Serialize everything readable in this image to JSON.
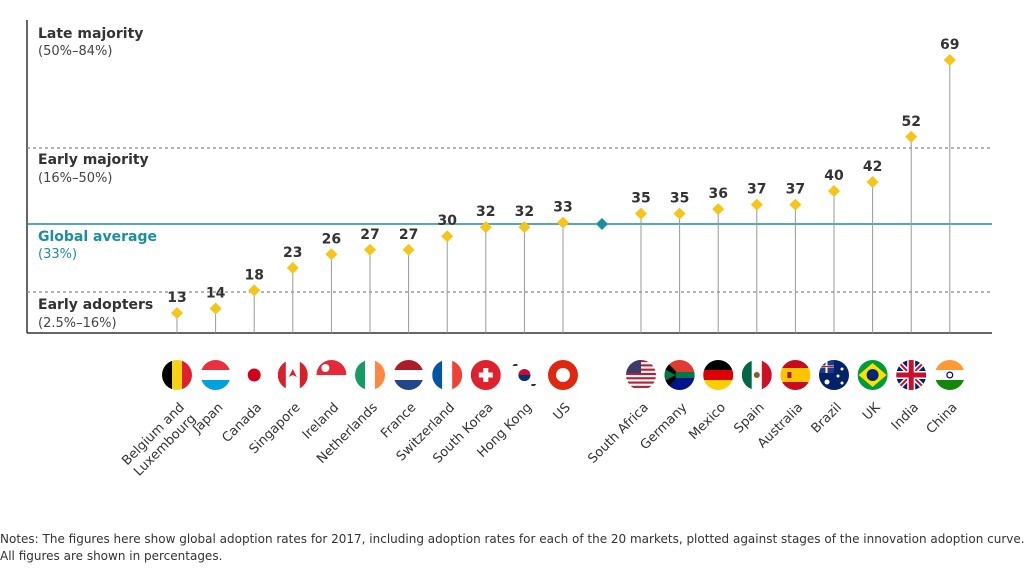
{
  "chart_data": {
    "type": "scatter",
    "title": "",
    "xlabel": "",
    "ylabel": "",
    "ylim": [
      10,
      72
    ],
    "categories": [
      "Belgium and Luxembourg",
      "Japan",
      "Canada",
      "Singapore",
      "Ireland",
      "Netherlands",
      "France",
      "Switzerland",
      "South Korea",
      "Hong Kong",
      "US",
      "South Africa",
      "Germany",
      "Mexico",
      "Spain",
      "Australia",
      "Brazil",
      "UK",
      "India",
      "China"
    ],
    "category_lines": [
      [
        "Belgium and",
        "Luxembourg"
      ],
      [
        "Japan"
      ],
      [
        "Canada"
      ],
      [
        "Singapore"
      ],
      [
        "Ireland"
      ],
      [
        "Netherlands"
      ],
      [
        "France"
      ],
      [
        "Switzerland"
      ],
      [
        "South Korea"
      ],
      [
        "Hong Kong"
      ],
      [
        "US"
      ],
      [
        "South Africa"
      ],
      [
        "Germany"
      ],
      [
        "Mexico"
      ],
      [
        "Spain"
      ],
      [
        "Australia"
      ],
      [
        "Brazil"
      ],
      [
        "UK"
      ],
      [
        "India"
      ],
      [
        "China"
      ]
    ],
    "values": [
      13,
      14,
      18,
      23,
      26,
      27,
      27,
      30,
      32,
      32,
      33,
      35,
      35,
      36,
      37,
      37,
      40,
      42,
      52,
      69
    ],
    "global_average": {
      "label": "Global average",
      "sub": "(33%)",
      "value": 33
    },
    "zones": [
      {
        "label": "Late majority",
        "range": "(50%–84%)"
      },
      {
        "label": "Early majority",
        "range": "(16%–50%)",
        "boundary": 50
      },
      {
        "label": "Early adopters",
        "range": "(2.5%–16%)",
        "boundary": 16
      }
    ],
    "colors": {
      "marker": "#f5c518",
      "average": "#1a8fa0",
      "stem": "#999999",
      "axis": "#333333",
      "dashed": "#888888"
    }
  },
  "notes": {
    "line1": "Notes: The figures here show global adoption rates for 2017, including adoption rates for each of the 20 markets, plotted against stages of the innovation adoption curve.",
    "line2": "All figures are shown in percentages."
  }
}
